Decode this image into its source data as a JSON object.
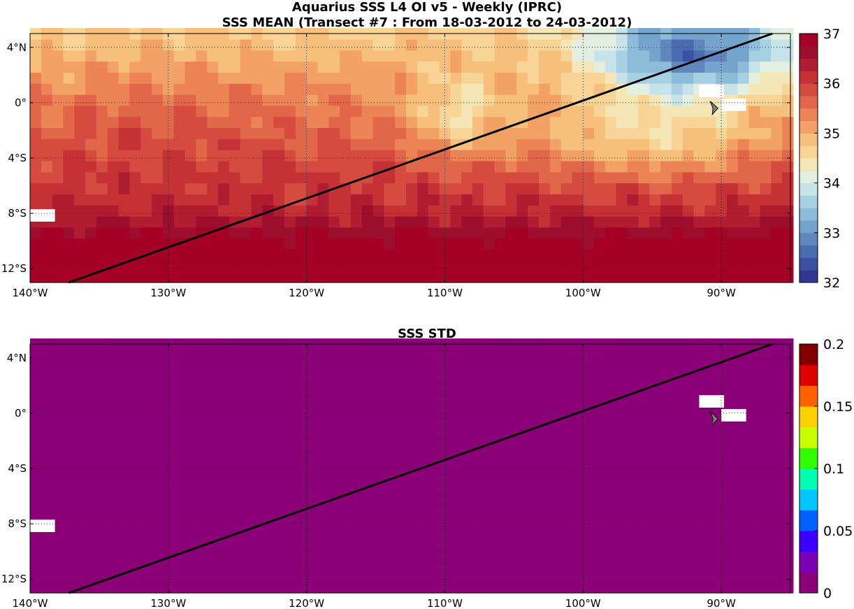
{
  "figure": {
    "title_line1": "Aquarius SSS L4 OI v5 - Weekly (IPRC)",
    "title_line2": "SSS MEAN (Transect #7 : From 18-03-2012 to 24-03-2012)",
    "bottom_title": "SSS STD"
  },
  "chart_data": [
    {
      "type": "heatmap",
      "title": "SSS MEAN (Transect #7 : From 18-03-2012 to 24-03-2012)",
      "xlim": [
        -140,
        -85
      ],
      "ylim": [
        -13,
        5
      ],
      "grid": true,
      "x_tick_values": [
        -140,
        -130,
        -120,
        -110,
        -100,
        -90
      ],
      "x_tick_labels": [
        "140°W",
        "130°W",
        "120°W",
        "110°W",
        "100°W",
        "90°W"
      ],
      "y_tick_values": [
        4,
        0,
        -4,
        -8,
        -12
      ],
      "y_tick_labels": [
        "4°N",
        "0°",
        "4°S",
        "8°S",
        "12°S"
      ],
      "colorbar": {
        "min": 32,
        "max": 37,
        "ticks": [
          32,
          33,
          34,
          35,
          36,
          37
        ],
        "tick_labels": [
          "32",
          "33",
          "34",
          "35",
          "36",
          "37"
        ],
        "colormap": [
          "#313695",
          "#3d4fa0",
          "#4b6bb0",
          "#5f87be",
          "#74a3cc",
          "#8dbcd9",
          "#a8d0e3",
          "#c7e3ea",
          "#e3efe1",
          "#f5e6b5",
          "#f8d596",
          "#f7bf7c",
          "#f3a267",
          "#ec8456",
          "#e06749",
          "#d54b3f",
          "#c53236",
          "#b01c30",
          "#9c0d2e",
          "#a50026"
        ]
      },
      "transect": {
        "from": [
          -137.2,
          -13
        ],
        "to": [
          -86.3,
          5
        ]
      },
      "missing_data_cells": [
        [
          -91.6,
          0.4
        ],
        [
          -90,
          -0.6
        ],
        [
          -140,
          -8.6
        ]
      ],
      "land_marker": [
        -90.5,
        -0.4
      ]
    },
    {
      "type": "heatmap",
      "title": "SSS STD",
      "xlim": [
        -140,
        -85
      ],
      "ylim": [
        -13,
        5
      ],
      "grid": true,
      "x_tick_values": [
        -140,
        -130,
        -120,
        -110,
        -100,
        -90
      ],
      "x_tick_labels": [
        "140°W",
        "130°W",
        "120°W",
        "110°W",
        "100°W",
        "90°W"
      ],
      "y_tick_values": [
        4,
        0,
        -4,
        -8,
        -12
      ],
      "y_tick_labels": [
        "4°N",
        "0°",
        "4°S",
        "8°S",
        "12°S"
      ],
      "uniform_value": 0,
      "colorbar": {
        "min": 0,
        "max": 0.2,
        "ticks": [
          0,
          0.05,
          0.1,
          0.15,
          0.2
        ],
        "tick_labels": [
          "0",
          "0.05",
          "0.1",
          "0.15",
          "0.2"
        ],
        "colormap": [
          "#8b0076",
          "#7a00b5",
          "#3b00ff",
          "#0060ff",
          "#00c8ff",
          "#00ffb0",
          "#30ff00",
          "#c8ff00",
          "#ffd000",
          "#ff6000",
          "#e00000",
          "#800000"
        ]
      },
      "transect": {
        "from": [
          -137.2,
          -13
        ],
        "to": [
          -86.3,
          5
        ]
      },
      "missing_data_cells": [
        [
          -91.6,
          0.4
        ],
        [
          -90,
          -0.6
        ],
        [
          -140,
          -8.6
        ]
      ],
      "land_marker": [
        -90.5,
        -0.4
      ]
    }
  ]
}
